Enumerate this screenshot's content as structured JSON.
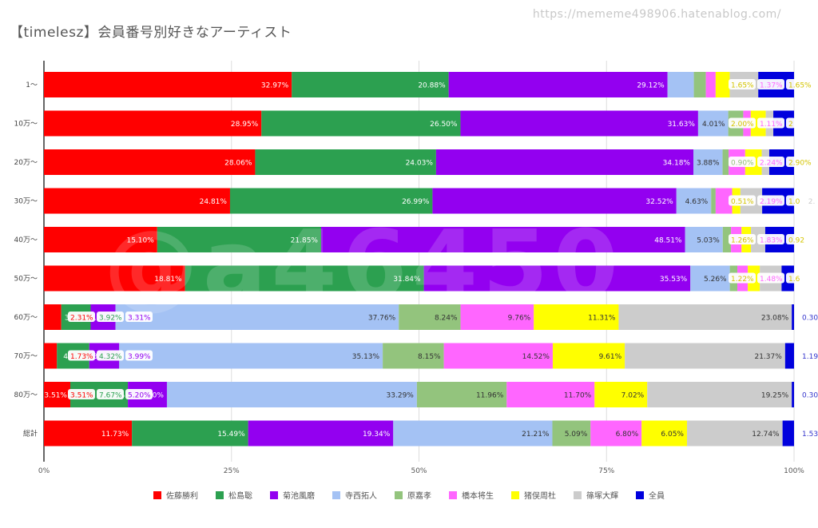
{
  "watermark_url": "https://mememe498906.hatenablog.com/",
  "watermark_text": "@a46450",
  "chart_data": {
    "type": "bar",
    "orientation": "horizontal",
    "stacked": "percent",
    "title": "【timelesz】会員番号別好きなアーティスト",
    "xlabel": "",
    "ylabel": "",
    "xlim": [
      0,
      100
    ],
    "x_ticks": [
      "0%",
      "25%",
      "50%",
      "75%",
      "100%"
    ],
    "grid": true,
    "legend_position": "bottom",
    "categories": [
      "1〜",
      "10万〜",
      "20万〜",
      "30万〜",
      "40万〜",
      "50万〜",
      "60万〜",
      "70万〜",
      "80万〜",
      "総計"
    ],
    "series": [
      {
        "name": "佐藤勝利",
        "color": "#ff0000",
        "values": [
          32.97,
          28.95,
          28.06,
          24.81,
          15.1,
          18.81,
          2.31,
          1.73,
          3.51,
          11.73
        ],
        "labels": [
          "32.97%",
          "28.95%",
          "28.06%",
          "24.81%",
          "15.10%",
          "18.81%",
          "2.31%",
          "1.73%",
          "3.51%",
          "11.73%"
        ]
      },
      {
        "name": "松島聡",
        "color": "#2ca050",
        "values": [
          20.88,
          26.5,
          24.03,
          26.99,
          21.85,
          31.84,
          3.92,
          4.32,
          7.67,
          15.49
        ],
        "labels": [
          "20.88%",
          "26.50%",
          "24.03%",
          "26.99%",
          "21.85%",
          "31.84%",
          "3.92%",
          "4.32%",
          "7.67%",
          "15.49%"
        ]
      },
      {
        "name": "菊池風磨",
        "color": "#9300f0",
        "values": [
          29.12,
          31.63,
          34.18,
          32.52,
          48.51,
          35.53,
          3.31,
          3.99,
          5.2,
          19.34
        ],
        "labels": [
          "29.12%",
          "31.63%",
          "34.18%",
          "32.52%",
          "48.51%",
          "35.53%",
          "3.31%",
          "3.99%",
          "5.20%",
          "19.34%"
        ]
      },
      {
        "name": "寺西拓人",
        "color": "#a4c2f4",
        "values": [
          3.5,
          4.01,
          3.88,
          4.63,
          5.03,
          5.26,
          37.76,
          35.13,
          33.29,
          21.21
        ],
        "labels": [
          "",
          "4.01%",
          "3.88%",
          "4.63%",
          "5.03%",
          "5.26%",
          "37.76%",
          "35.13%",
          "33.29%",
          "21.21%"
        ]
      },
      {
        "name": "原嘉孝",
        "color": "#93c47d",
        "values": [
          1.6,
          2.0,
          0.8,
          0.6,
          1.1,
          1.0,
          8.24,
          8.15,
          11.96,
          5.09
        ],
        "labels": [
          "",
          "",
          "",
          "",
          "",
          "",
          "8.24%",
          "8.15%",
          "11.96%",
          "5.09%"
        ]
      },
      {
        "name": "橋本将生",
        "color": "#ff66ff",
        "values": [
          1.3,
          1.0,
          2.2,
          2.2,
          1.4,
          1.4,
          9.76,
          14.52,
          11.7,
          6.8
        ],
        "labels": [
          "",
          "",
          "",
          "",
          "",
          "",
          "9.76%",
          "14.52%",
          "11.70%",
          "6.80%"
        ]
      },
      {
        "name": "猪俣周杜",
        "color": "#ffff00",
        "values": [
          1.87,
          2.0,
          2.2,
          1.1,
          1.26,
          1.6,
          11.31,
          9.61,
          7.02,
          6.05
        ],
        "labels": [
          "1.87%",
          "",
          "",
          "",
          "",
          "",
          "11.31%",
          "9.61%",
          "7.02%",
          "6.05%"
        ]
      },
      {
        "name": "篠塚大輝",
        "color": "#cccccc",
        "values": [
          3.8,
          1.0,
          1.0,
          2.9,
          1.9,
          2.9,
          23.08,
          21.37,
          19.25,
          12.74
        ],
        "labels": [
          "",
          "",
          "",
          "",
          "",
          "",
          "23.08%",
          "21.37%",
          "19.25%",
          "12.74%"
        ]
      },
      {
        "name": "全員",
        "color": "#0000dd",
        "values": [
          4.76,
          2.76,
          3.29,
          4.25,
          3.84,
          1.66,
          0.3,
          1.19,
          0.3,
          1.53
        ],
        "labels": [
          "",
          "",
          "",
          "",
          "",
          "",
          "0.30",
          "1.19",
          "0.30",
          "1.53"
        ]
      }
    ],
    "callouts": [
      {
        "row": 0,
        "texts": [
          [
            "1.65%",
            "#ffff00"
          ],
          [
            "1.37%",
            "#ff66ff"
          ],
          [
            "1.65%",
            "#ffff00"
          ]
        ]
      },
      {
        "row": 1,
        "texts": [
          [
            "2.00%",
            "#ffff00"
          ],
          [
            "1.11%",
            "#ff66ff"
          ],
          [
            "2",
            "#ffff00"
          ]
        ]
      },
      {
        "row": 2,
        "texts": [
          [
            "0.90%",
            "#93c47d"
          ],
          [
            "2.24%",
            "#ff66ff"
          ],
          [
            "2.90%",
            "#ffff00"
          ]
        ]
      },
      {
        "row": 3,
        "texts": [
          [
            "0.51%",
            "#ffff00"
          ],
          [
            "2.19%",
            "#ff66ff"
          ],
          [
            "1.0",
            "#ffff00"
          ],
          [
            "2.",
            "#cccccc"
          ]
        ]
      },
      {
        "row": 4,
        "texts": [
          [
            "1.26%",
            "#ffff00"
          ],
          [
            "1.83%",
            "#ff66ff"
          ],
          [
            "0.92",
            "#ffff00"
          ]
        ]
      },
      {
        "row": 5,
        "texts": [
          [
            "1.22%",
            "#ffff00"
          ],
          [
            "1.48%",
            "#ff66ff"
          ],
          [
            "1.6",
            "#ffff00"
          ]
        ]
      }
    ]
  }
}
